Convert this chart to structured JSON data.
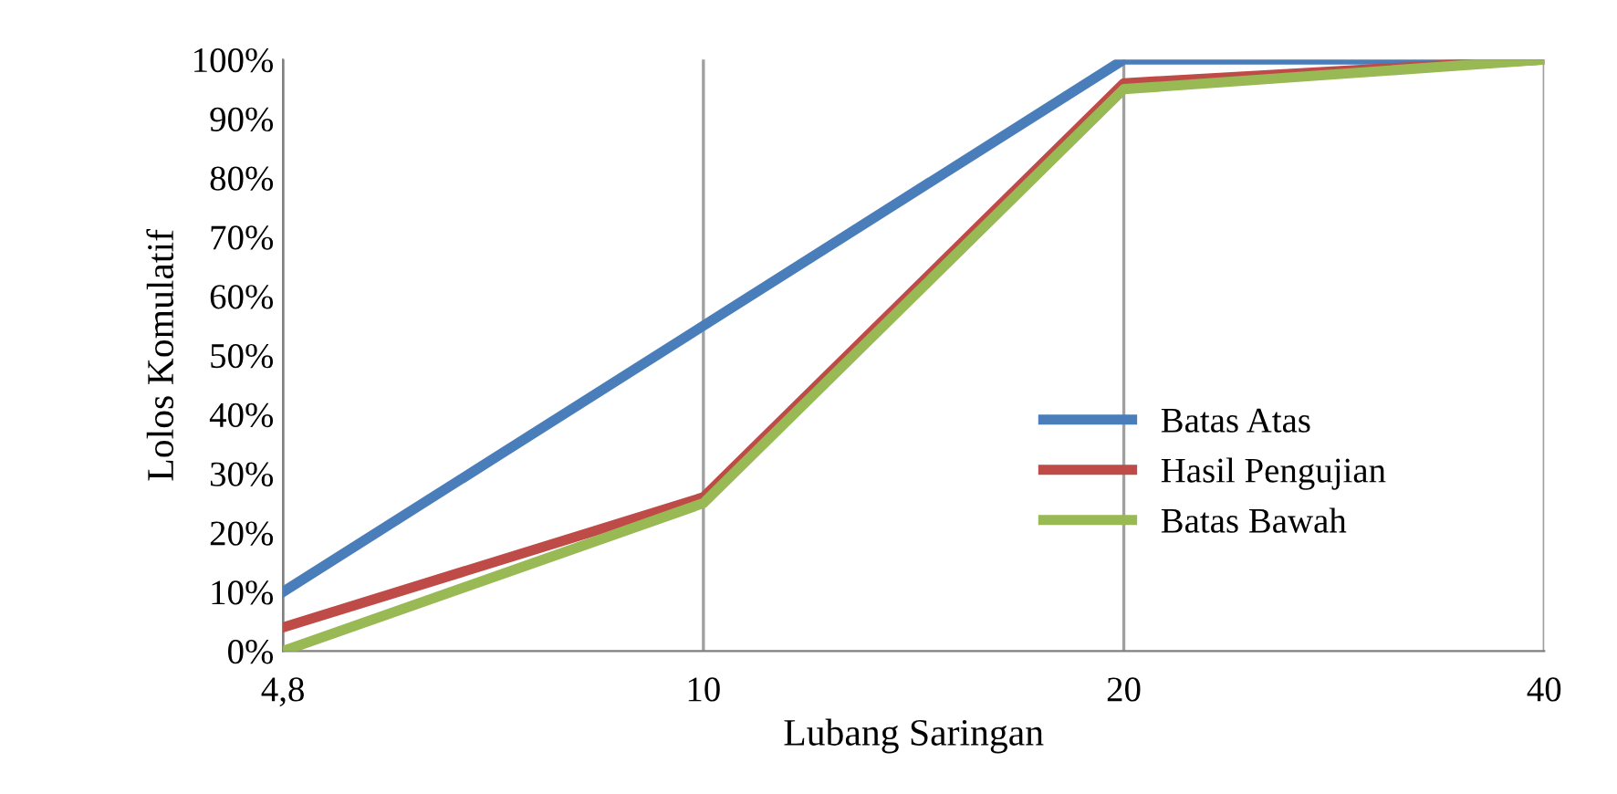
{
  "chart_data": {
    "type": "line",
    "xlabel": "Lubang Saringan",
    "ylabel": "Lolos Komulatif",
    "categories": [
      "4,8",
      "10",
      "20",
      "40"
    ],
    "series": [
      {
        "name": "Batas Atas",
        "color": "#4a7ebb",
        "values": [
          10,
          55,
          100,
          100
        ]
      },
      {
        "name": "Hasil Pengujian",
        "color": "#be4b48",
        "values": [
          4,
          26,
          96,
          100
        ]
      },
      {
        "name": "Batas Bawah",
        "color": "#98b954",
        "values": [
          0,
          25,
          95,
          100
        ]
      }
    ],
    "ylim": [
      0,
      100
    ],
    "yticks": [
      {
        "value": 0,
        "label": "0%"
      },
      {
        "value": 10,
        "label": "10%"
      },
      {
        "value": 20,
        "label": "20%"
      },
      {
        "value": 30,
        "label": "30%"
      },
      {
        "value": 40,
        "label": "40%"
      },
      {
        "value": 50,
        "label": "50%"
      },
      {
        "value": 60,
        "label": "60%"
      },
      {
        "value": 70,
        "label": "70%"
      },
      {
        "value": 80,
        "label": "80%"
      },
      {
        "value": 90,
        "label": "90%"
      },
      {
        "value": 100,
        "label": "100%"
      }
    ],
    "grid": "x",
    "legend": "center right",
    "marker": "none",
    "line_style": "solid"
  }
}
